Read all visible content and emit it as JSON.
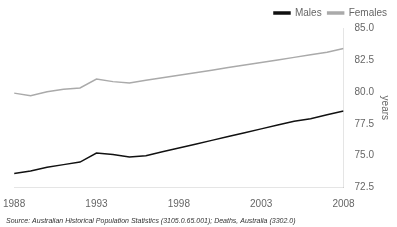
{
  "chart_data": {
    "type": "line",
    "x": [
      1988,
      1989,
      1990,
      1991,
      1992,
      1993,
      1994,
      1995,
      1996,
      1997,
      1998,
      1999,
      2000,
      2001,
      2002,
      2003,
      2004,
      2005,
      2006,
      2007,
      2008
    ],
    "series": [
      {
        "name": "Males",
        "color": "#111111",
        "values": [
          73.6,
          73.8,
          74.1,
          74.3,
          74.5,
          75.2,
          75.1,
          74.9,
          75.0,
          75.3,
          75.6,
          75.9,
          76.2,
          76.5,
          76.8,
          77.1,
          77.4,
          77.7,
          77.9,
          78.2,
          78.5
        ]
      },
      {
        "name": "Females",
        "color": "#aaaaaa",
        "values": [
          79.9,
          79.7,
          80.0,
          80.2,
          80.3,
          81.0,
          80.8,
          80.7,
          80.9,
          81.1,
          81.3,
          81.5,
          81.7,
          81.9,
          82.1,
          82.3,
          82.5,
          82.7,
          82.9,
          83.1,
          83.4
        ]
      }
    ],
    "ylabel": "years",
    "annotation": "Source: Australian Historical Population Statistics (3105.0.65.001); Deaths, Australia (3302.0)",
    "xlim": [
      1988,
      2008
    ],
    "xticks": [
      1988,
      1993,
      1998,
      2003,
      2008
    ],
    "ylim": [
      72.5,
      85.0
    ],
    "yticks": [
      72.5,
      {
        "value": 75.0,
        "label": "75.0"
      },
      77.5,
      {
        "value": 80.0,
        "label": "80.0"
      },
      82.5,
      {
        "value": 85.0,
        "label": "85.0"
      }
    ],
    "grid": false,
    "legend": "top"
  }
}
